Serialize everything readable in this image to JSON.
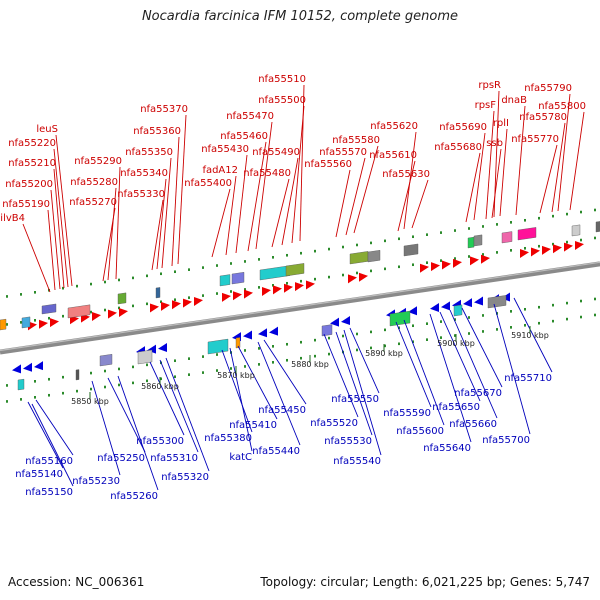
{
  "title": "Nocardia farcinica IFM 10152, complete genome",
  "footer": {
    "accession": "Accession: NC_006361",
    "summary": "Topology: circular; Length: 6,021,225 bp; Genes: 5,747"
  },
  "colors": {
    "top_label": "#cc0000",
    "bottom_label": "#0000bb",
    "backbone": "#888888",
    "tick": "#228822"
  },
  "scale": {
    "ticks": [
      {
        "label": "5850 kbp"
      },
      {
        "label": "5860 kbp"
      },
      {
        "label": "5870 kbp"
      },
      {
        "label": "5880 kbp"
      },
      {
        "label": "5890 kbp"
      },
      {
        "label": "5900 kbp"
      },
      {
        "label": "5910 kbp"
      }
    ]
  },
  "genes_top": [
    {
      "name": "ilvB4"
    },
    {
      "name": "nfa55190"
    },
    {
      "name": "nfa55200"
    },
    {
      "name": "nfa55210"
    },
    {
      "name": "nfa55220"
    },
    {
      "name": "leuS"
    },
    {
      "name": "nfa55270"
    },
    {
      "name": "nfa55280"
    },
    {
      "name": "nfa55290"
    },
    {
      "name": "nfa55330"
    },
    {
      "name": "nfa55340"
    },
    {
      "name": "nfa55350"
    },
    {
      "name": "nfa55360"
    },
    {
      "name": "nfa55370"
    },
    {
      "name": "nfa55400"
    },
    {
      "name": "fadA12"
    },
    {
      "name": "nfa55430"
    },
    {
      "name": "nfa55460"
    },
    {
      "name": "nfa55470"
    },
    {
      "name": "nfa55480"
    },
    {
      "name": "nfa55490"
    },
    {
      "name": "nfa55500"
    },
    {
      "name": "nfa55510"
    },
    {
      "name": "nfa55560"
    },
    {
      "name": "nfa55570"
    },
    {
      "name": "nfa55580"
    },
    {
      "name": "nfa55610"
    },
    {
      "name": "nfa55620"
    },
    {
      "name": "nfa55630"
    },
    {
      "name": "nfa55680"
    },
    {
      "name": "nfa55690"
    },
    {
      "name": "rpsF"
    },
    {
      "name": "ssb"
    },
    {
      "name": "rpsR"
    },
    {
      "name": "rplI"
    },
    {
      "name": "dnaB"
    },
    {
      "name": "nfa55770"
    },
    {
      "name": "nfa55780"
    },
    {
      "name": "nfa55790"
    },
    {
      "name": "nfa55800"
    }
  ],
  "genes_bottom": [
    {
      "name": "nfa55160"
    },
    {
      "name": "nfa55140"
    },
    {
      "name": "nfa55150"
    },
    {
      "name": "nfa55230"
    },
    {
      "name": "nfa55250"
    },
    {
      "name": "nfa55260"
    },
    {
      "name": "nfa55300"
    },
    {
      "name": "nfa55310"
    },
    {
      "name": "nfa55320"
    },
    {
      "name": "nfa55380"
    },
    {
      "name": "katC"
    },
    {
      "name": "nfa55410"
    },
    {
      "name": "nfa55440"
    },
    {
      "name": "nfa55450"
    },
    {
      "name": "nfa55520"
    },
    {
      "name": "nfa55530"
    },
    {
      "name": "nfa55540"
    },
    {
      "name": "nfa55550"
    },
    {
      "name": "nfa55590"
    },
    {
      "name": "nfa55600"
    },
    {
      "name": "nfa55640"
    },
    {
      "name": "nfa55650"
    },
    {
      "name": "nfa55660"
    },
    {
      "name": "nfa55670"
    },
    {
      "name": "nfa55700"
    },
    {
      "name": "nfa55710"
    }
  ]
}
